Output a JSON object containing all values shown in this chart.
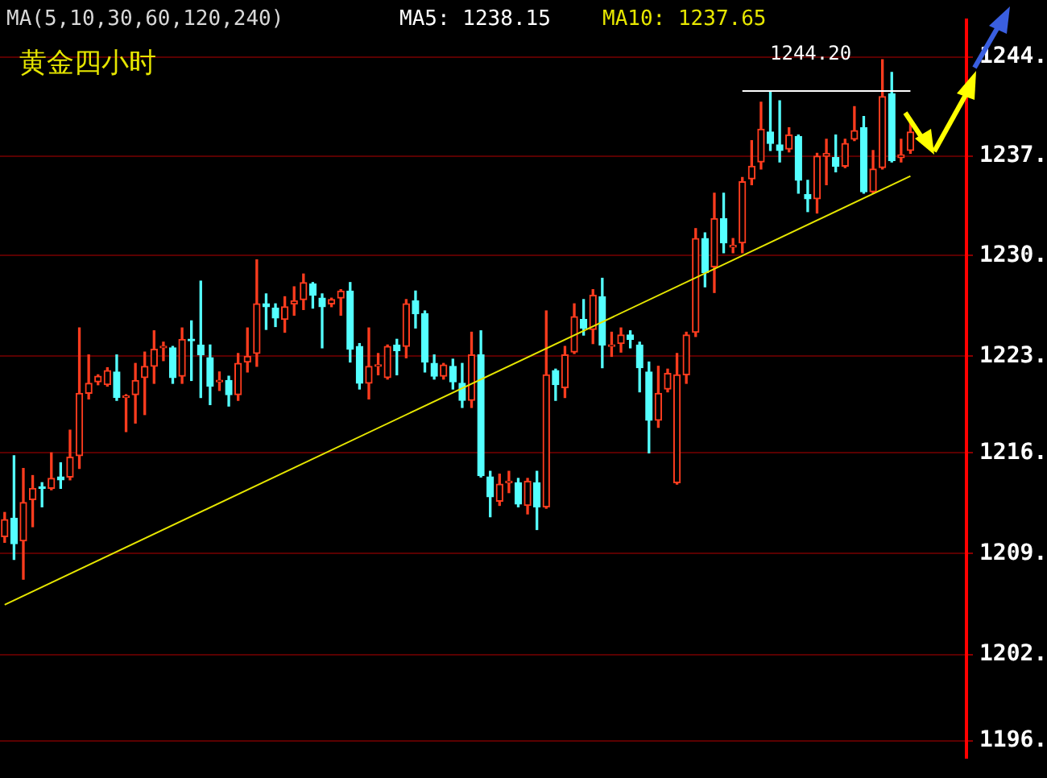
{
  "chart_data": {
    "type": "candlestick",
    "title": "黄金四小时",
    "categories": [
      null,
      null,
      null,
      null,
      null,
      null,
      null,
      null,
      null,
      null,
      null,
      null,
      null,
      null,
      null,
      null,
      null,
      null,
      null,
      null,
      null,
      null,
      null,
      null,
      null,
      null,
      null,
      null,
      null,
      null,
      null,
      null,
      null,
      null,
      null,
      null,
      null,
      null,
      null,
      null,
      null,
      null,
      null,
      null,
      null,
      null,
      null,
      null,
      null,
      null,
      null,
      null,
      null,
      null,
      null,
      null,
      null,
      null,
      null,
      null,
      null,
      null,
      null,
      null,
      null,
      null,
      null,
      null,
      null,
      null,
      null,
      null,
      null,
      null,
      null,
      null,
      null,
      null,
      null,
      null,
      null,
      null,
      null,
      null,
      null,
      null,
      null,
      null,
      null,
      null,
      null,
      null,
      null,
      null,
      null,
      null,
      null,
      null
    ],
    "ohlc": [
      [
        1210.6,
        1212.3,
        1210.2,
        1211.8
      ],
      [
        1211.9,
        1216.3,
        1209.0,
        1210.1
      ],
      [
        1210.3,
        1215.4,
        1207.6,
        1213.0
      ],
      [
        1213.2,
        1214.9,
        1211.3,
        1214.0
      ],
      [
        1214.1,
        1214.4,
        1212.7,
        1214.0
      ],
      [
        1214.0,
        1216.5,
        1213.9,
        1214.7
      ],
      [
        1214.8,
        1215.8,
        1214.0,
        1214.6
      ],
      [
        1214.8,
        1218.1,
        1214.6,
        1216.2
      ],
      [
        1216.3,
        1225.3,
        1215.4,
        1220.7
      ],
      [
        1220.7,
        1223.4,
        1220.3,
        1221.4
      ],
      [
        1221.5,
        1222.0,
        1221.3,
        1221.9
      ],
      [
        1221.3,
        1222.5,
        1221.2,
        1222.3
      ],
      [
        1222.2,
        1223.4,
        1220.2,
        1220.4
      ],
      [
        1220.4,
        1220.6,
        1218.0,
        1220.5
      ],
      [
        1220.6,
        1222.8,
        1218.6,
        1221.6
      ],
      [
        1221.8,
        1223.6,
        1219.2,
        1222.6
      ],
      [
        1222.6,
        1225.1,
        1221.4,
        1223.8
      ],
      [
        1223.9,
        1224.3,
        1223.0,
        1224.0
      ],
      [
        1223.9,
        1224.0,
        1221.4,
        1221.8
      ],
      [
        1221.9,
        1225.3,
        1221.4,
        1224.5
      ],
      [
        1224.5,
        1225.8,
        1221.6,
        1224.4
      ],
      [
        1224.1,
        1228.6,
        1220.4,
        1223.4
      ],
      [
        1223.2,
        1224.1,
        1219.9,
        1221.2
      ],
      [
        1221.5,
        1222.2,
        1220.9,
        1221.6
      ],
      [
        1221.6,
        1221.9,
        1219.8,
        1220.6
      ],
      [
        1220.6,
        1223.5,
        1220.2,
        1222.8
      ],
      [
        1222.9,
        1225.3,
        1222.2,
        1223.3
      ],
      [
        1223.5,
        1230.1,
        1222.6,
        1227.0
      ],
      [
        1227.0,
        1227.7,
        1225.2,
        1226.8
      ],
      [
        1226.7,
        1227.0,
        1225.4,
        1226.0
      ],
      [
        1225.9,
        1227.5,
        1225.0,
        1226.8
      ],
      [
        1227.0,
        1228.2,
        1226.2,
        1227.2
      ],
      [
        1227.3,
        1229.1,
        1226.6,
        1228.5
      ],
      [
        1228.4,
        1228.5,
        1226.7,
        1227.6
      ],
      [
        1227.4,
        1227.7,
        1223.9,
        1226.8
      ],
      [
        1227.0,
        1227.4,
        1226.8,
        1227.3
      ],
      [
        1227.4,
        1228.0,
        1226.2,
        1227.9
      ],
      [
        1227.9,
        1228.5,
        1222.9,
        1223.8
      ],
      [
        1224.0,
        1224.2,
        1221.0,
        1221.4
      ],
      [
        1221.4,
        1225.3,
        1220.3,
        1222.6
      ],
      [
        1222.6,
        1223.5,
        1222.0,
        1222.7
      ],
      [
        1221.8,
        1224.1,
        1221.7,
        1224.0
      ],
      [
        1224.1,
        1224.5,
        1222.0,
        1223.7
      ],
      [
        1224.0,
        1227.3,
        1223.2,
        1227.0
      ],
      [
        1227.2,
        1227.9,
        1225.3,
        1226.3
      ],
      [
        1226.3,
        1226.5,
        1222.2,
        1222.9
      ],
      [
        1222.8,
        1223.4,
        1221.7,
        1221.9
      ],
      [
        1221.9,
        1222.8,
        1221.7,
        1222.7
      ],
      [
        1222.6,
        1223.1,
        1221.0,
        1221.5
      ],
      [
        1221.4,
        1222.8,
        1219.7,
        1220.2
      ],
      [
        1220.2,
        1225.0,
        1219.7,
        1223.4
      ],
      [
        1223.4,
        1225.1,
        1214.8,
        1214.9
      ],
      [
        1214.8,
        1215.2,
        1212.0,
        1213.4
      ],
      [
        1213.1,
        1215.0,
        1212.8,
        1214.3
      ],
      [
        1214.4,
        1215.2,
        1213.7,
        1214.5
      ],
      [
        1214.4,
        1214.7,
        1212.7,
        1212.9
      ],
      [
        1212.8,
        1214.7,
        1212.2,
        1214.5
      ],
      [
        1214.4,
        1215.2,
        1211.1,
        1212.7
      ],
      [
        1212.7,
        1226.5,
        1212.6,
        1222.0
      ],
      [
        1222.3,
        1222.4,
        1220.2,
        1221.3
      ],
      [
        1221.1,
        1224.0,
        1220.4,
        1223.4
      ],
      [
        1223.6,
        1227.0,
        1223.5,
        1226.1
      ],
      [
        1225.9,
        1227.3,
        1224.8,
        1225.3
      ],
      [
        1225.2,
        1228.0,
        1224.2,
        1227.6
      ],
      [
        1227.5,
        1228.8,
        1222.5,
        1224.1
      ],
      [
        1224.0,
        1225.0,
        1223.3,
        1224.1
      ],
      [
        1224.2,
        1225.3,
        1223.6,
        1224.8
      ],
      [
        1224.8,
        1225.1,
        1223.9,
        1224.5
      ],
      [
        1224.1,
        1224.3,
        1220.8,
        1222.5
      ],
      [
        1222.2,
        1222.9,
        1216.5,
        1218.8
      ],
      [
        1218.8,
        1222.6,
        1218.3,
        1220.7
      ],
      [
        1221.0,
        1222.4,
        1220.8,
        1222.1
      ],
      [
        1214.4,
        1223.5,
        1214.3,
        1222.0
      ],
      [
        1222.0,
        1225.0,
        1221.4,
        1224.8
      ],
      [
        1225.0,
        1232.3,
        1224.7,
        1231.6
      ],
      [
        1231.6,
        1232.0,
        1228.2,
        1229.2
      ],
      [
        1229.6,
        1234.8,
        1227.8,
        1233.0
      ],
      [
        1233.0,
        1234.8,
        1230.6,
        1231.3
      ],
      [
        1231.0,
        1231.6,
        1230.6,
        1231.1
      ],
      [
        1231.3,
        1235.9,
        1230.6,
        1235.6
      ],
      [
        1235.8,
        1238.5,
        1235.4,
        1236.7
      ],
      [
        1237.0,
        1241.2,
        1236.5,
        1239.3
      ],
      [
        1239.1,
        1242.0,
        1237.8,
        1238.3
      ],
      [
        1238.2,
        1241.3,
        1237.0,
        1237.8
      ],
      [
        1237.9,
        1239.4,
        1237.7,
        1238.9
      ],
      [
        1238.8,
        1238.9,
        1234.8,
        1235.7
      ],
      [
        1234.7,
        1235.7,
        1233.5,
        1234.4
      ],
      [
        1234.4,
        1237.6,
        1233.4,
        1237.4
      ],
      [
        1237.4,
        1238.6,
        1235.4,
        1237.6
      ],
      [
        1237.3,
        1238.9,
        1236.3,
        1236.7
      ],
      [
        1236.7,
        1238.6,
        1236.6,
        1238.3
      ],
      [
        1238.6,
        1240.9,
        1238.5,
        1239.2
      ],
      [
        1239.4,
        1240.2,
        1234.8,
        1234.9
      ],
      [
        1234.9,
        1237.8,
        1234.8,
        1236.5
      ],
      [
        1236.6,
        1244.2,
        1236.5,
        1241.6
      ],
      [
        1241.8,
        1243.3,
        1237.0,
        1237.1
      ],
      [
        1237.3,
        1238.6,
        1237.0,
        1237.5
      ],
      [
        1237.8,
        1239.8,
        1237.6,
        1239.1
      ]
    ],
    "series": [
      {
        "type": "line",
        "color": "#e6e600",
        "values": [
          1205.8,
          null,
          null,
          null,
          null,
          null,
          null,
          null,
          null,
          null,
          null,
          null,
          null,
          null,
          null,
          null,
          null,
          null,
          null,
          null,
          null,
          null,
          null,
          null,
          null,
          null,
          null,
          null,
          null,
          null,
          null,
          null,
          null,
          null,
          null,
          null,
          null,
          null,
          null,
          null,
          null,
          null,
          null,
          null,
          null,
          null,
          null,
          null,
          null,
          null,
          null,
          null,
          null,
          null,
          null,
          null,
          null,
          null,
          null,
          null,
          null,
          null,
          null,
          null,
          null,
          null,
          null,
          null,
          null,
          null,
          null,
          null,
          null,
          null,
          null,
          null,
          null,
          null,
          null,
          null,
          null,
          null,
          null,
          null,
          null,
          null,
          null,
          null,
          null,
          null,
          null,
          null,
          null,
          null,
          null,
          null,
          null,
          1236.0
        ]
      },
      {
        "type": "line",
        "color": "#ffffff",
        "values": [
          null,
          null,
          null,
          null,
          null,
          null,
          null,
          null,
          null,
          null,
          null,
          null,
          null,
          null,
          null,
          null,
          null,
          null,
          null,
          null,
          null,
          null,
          null,
          null,
          null,
          null,
          null,
          null,
          null,
          null,
          null,
          null,
          null,
          null,
          null,
          null,
          null,
          null,
          null,
          null,
          null,
          null,
          null,
          null,
          null,
          null,
          null,
          null,
          null,
          null,
          null,
          null,
          null,
          null,
          null,
          null,
          null,
          null,
          null,
          null,
          null,
          null,
          null,
          null,
          null,
          null,
          null,
          null,
          null,
          null,
          null,
          null,
          null,
          null,
          null,
          null,
          null,
          null,
          null,
          1242.0,
          null,
          null,
          null,
          null,
          null,
          null,
          null,
          null,
          null,
          null,
          null,
          null,
          null,
          null,
          null,
          null,
          null,
          1242.0
        ]
      }
    ],
    "ylim": [
      1195.0,
      1247.0
    ],
    "yticks": [
      {
        "value": 1196.2,
        "label": "1196."
      },
      {
        "value": 1202.3,
        "label": "1202."
      },
      {
        "value": 1209.4,
        "label": "1209."
      },
      {
        "value": 1216.5,
        "label": "1216."
      },
      {
        "value": 1223.3,
        "label": "1223."
      },
      {
        "value": 1230.4,
        "label": "1230."
      },
      {
        "value": 1237.4,
        "label": "1237."
      },
      {
        "value": 1244.4,
        "label": "1244."
      }
    ],
    "annotations": [
      "MA(5,10,30,60,120,240)",
      "MA5: 1238.15",
      "MA10: 1237.65",
      "1244.20"
    ],
    "grid": "y",
    "tick_labels": "y",
    "legend": false
  }
}
